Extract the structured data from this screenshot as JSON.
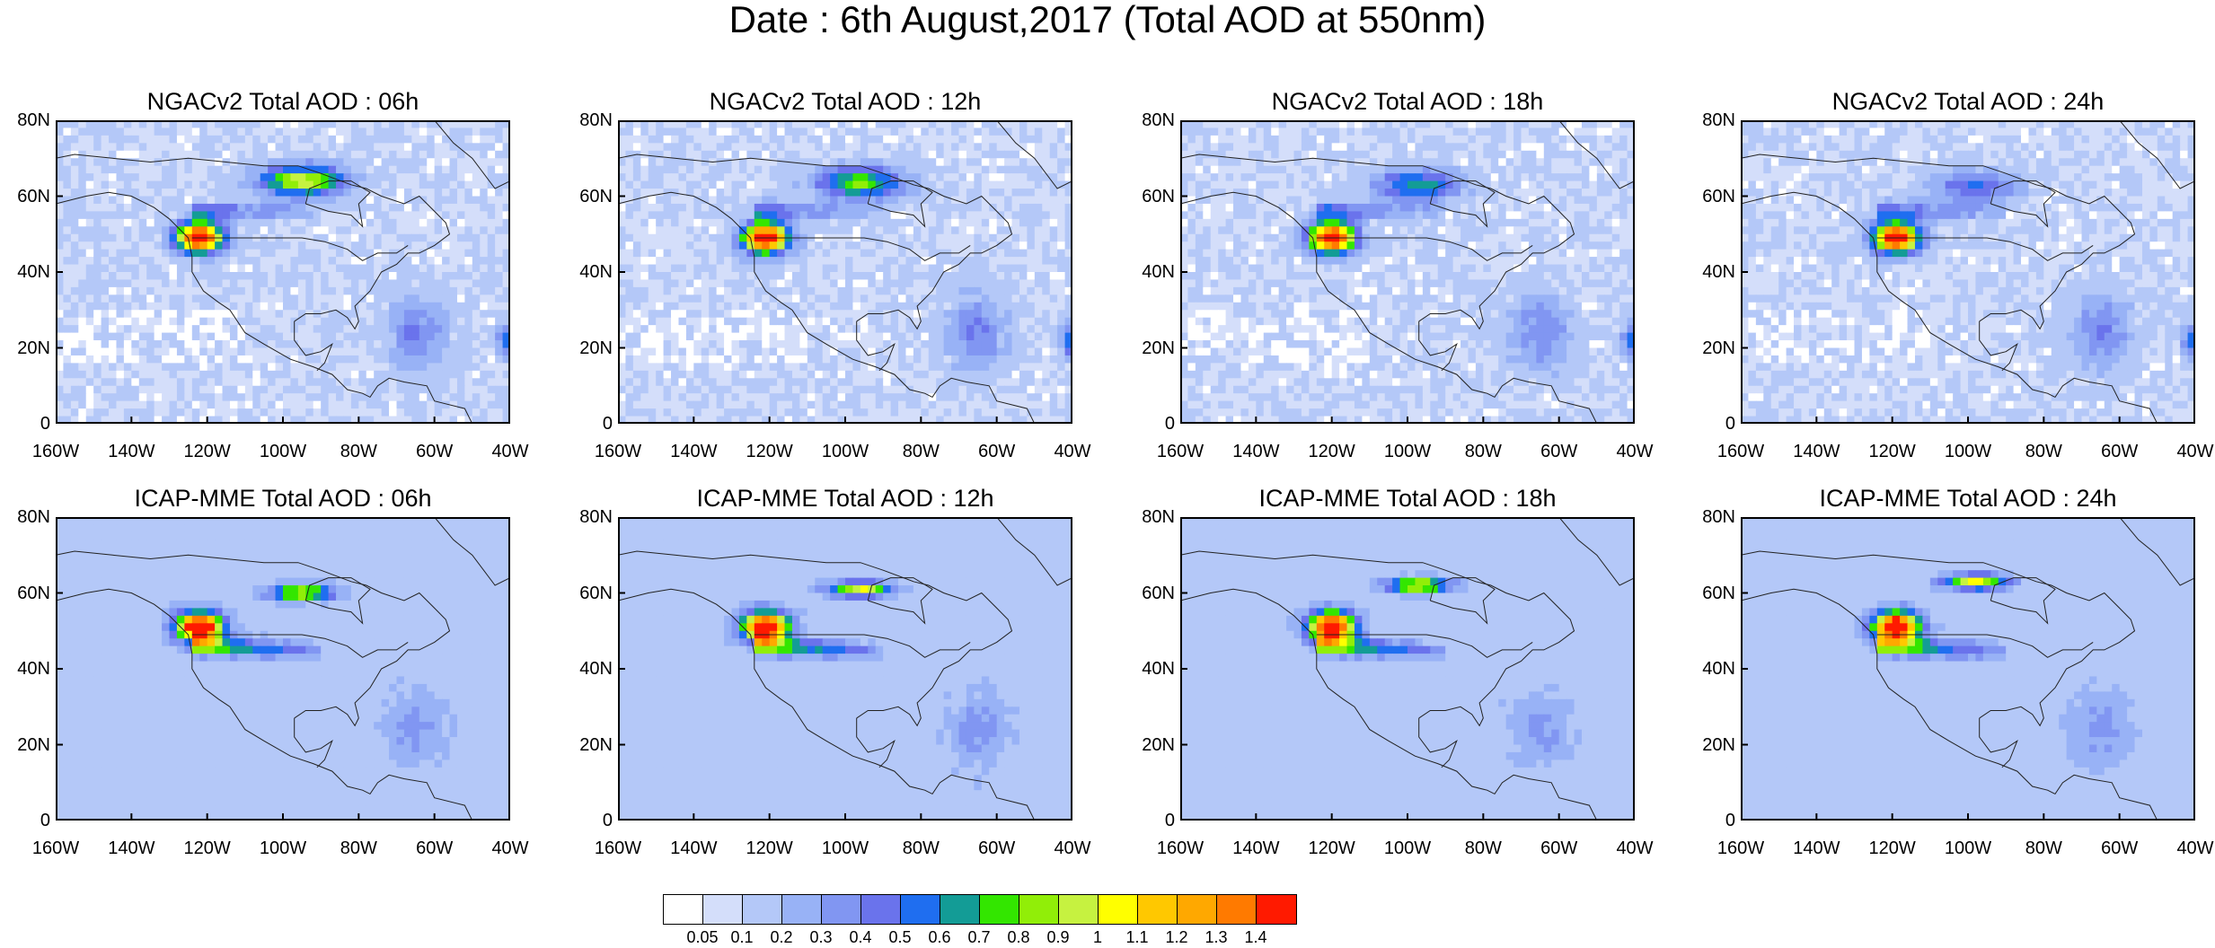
{
  "title": "Date : 6th August,2017 (Total AOD at 550nm)",
  "panels": [
    {
      "title": "NGACv2 Total AOD : 06h"
    },
    {
      "title": "NGACv2 Total AOD : 12h"
    },
    {
      "title": "NGACv2 Total AOD : 18h"
    },
    {
      "title": "NGACv2 Total AOD : 24h"
    },
    {
      "title": "ICAP-MME Total AOD : 06h"
    },
    {
      "title": "ICAP-MME Total AOD : 12h"
    },
    {
      "title": "ICAP-MME Total AOD : 18h"
    },
    {
      "title": "ICAP-MME Total AOD : 24h"
    }
  ],
  "y_ticks": [
    "80N",
    "60N",
    "40N",
    "20N",
    "0"
  ],
  "x_ticks": [
    "160W",
    "140W",
    "120W",
    "100W",
    "80W",
    "60W",
    "40W"
  ],
  "colorbar": {
    "labels": [
      "0.05",
      "0.1",
      "0.2",
      "0.3",
      "0.4",
      "0.5",
      "0.6",
      "0.7",
      "0.8",
      "0.9",
      "1",
      "1.1",
      "1.2",
      "1.3",
      "1.4"
    ],
    "colors": [
      "#ffffff",
      "#d4defa",
      "#b4c8f8",
      "#98b2f6",
      "#8196f2",
      "#6a73ec",
      "#1f6ef0",
      "#139c96",
      "#33e600",
      "#91ee08",
      "#c6f240",
      "#ffff00",
      "#ffc800",
      "#ffa800",
      "#ff7a00",
      "#ff1a00"
    ]
  }
}
